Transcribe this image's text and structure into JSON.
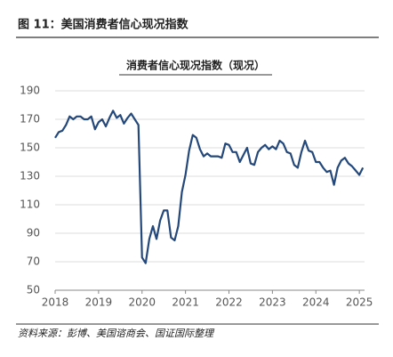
{
  "chart_data": {
    "type": "line",
    "header": "图 11：美国消费者信心现况指数",
    "title": "消费者信心现况指数（现况）",
    "source": "资料来源：彭博、美国谘商会、国证国际整理",
    "xlim": [
      2018,
      2025.12
    ],
    "xticks": [
      2018,
      2019,
      2020,
      2021,
      2022,
      2023,
      2024,
      2025
    ],
    "ylim": [
      50,
      190
    ],
    "yticks": [
      50,
      70,
      90,
      110,
      130,
      150,
      170,
      190
    ],
    "grid": true,
    "series": [
      {
        "color": "#24487a",
        "x": [
          2018,
          2018.083,
          2018.167,
          2018.25,
          2018.333,
          2018.417,
          2018.5,
          2018.583,
          2018.667,
          2018.75,
          2018.833,
          2018.917,
          2019,
          2019.083,
          2019.167,
          2019.25,
          2019.333,
          2019.417,
          2019.5,
          2019.583,
          2019.667,
          2019.75,
          2019.833,
          2019.917,
          2020,
          2020.083,
          2020.167,
          2020.25,
          2020.333,
          2020.417,
          2020.5,
          2020.583,
          2020.667,
          2020.75,
          2020.833,
          2020.917,
          2021,
          2021.083,
          2021.167,
          2021.25,
          2021.333,
          2021.417,
          2021.5,
          2021.583,
          2021.667,
          2021.75,
          2021.833,
          2021.917,
          2022,
          2022.083,
          2022.167,
          2022.25,
          2022.333,
          2022.417,
          2022.5,
          2022.583,
          2022.667,
          2022.75,
          2022.833,
          2022.917,
          2023,
          2023.083,
          2023.167,
          2023.25,
          2023.333,
          2023.417,
          2023.5,
          2023.583,
          2023.667,
          2023.75,
          2023.833,
          2023.917,
          2024,
          2024.083,
          2024.167,
          2024.25,
          2024.333,
          2024.417,
          2024.5,
          2024.583,
          2024.667,
          2024.75,
          2024.833,
          2024.917,
          2025,
          2025.083
        ],
        "values": [
          157,
          161,
          162,
          166,
          172,
          170,
          172,
          172,
          170,
          170,
          172,
          163,
          168,
          170,
          165,
          171,
          176,
          171,
          173,
          167,
          171,
          174,
          170,
          166,
          73,
          69,
          86,
          95,
          86,
          99,
          106,
          106,
          87,
          85,
          95,
          119,
          131,
          148,
          159,
          157,
          149,
          144,
          146,
          144,
          144,
          144,
          143,
          153,
          152,
          147,
          147,
          140,
          145,
          150,
          139,
          138,
          147,
          150,
          152,
          149,
          151,
          149,
          155,
          153,
          147,
          146,
          138,
          136,
          147,
          155,
          148,
          147,
          140,
          140,
          136,
          133,
          134,
          124,
          136,
          141,
          143,
          139,
          137,
          134,
          131,
          136
        ]
      }
    ]
  }
}
